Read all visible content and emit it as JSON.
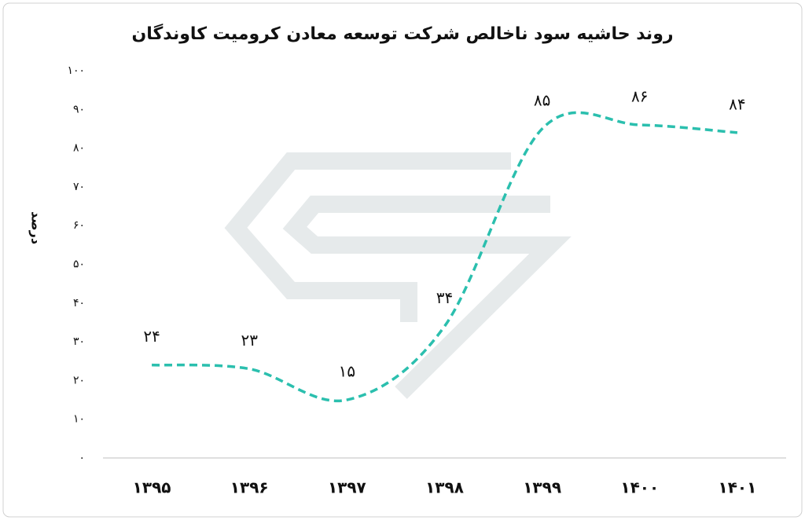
{
  "chart_data": {
    "type": "line",
    "title": "روند حاشیه سود ناخالص شرکت توسعه معادن کرومیت کاوندگان",
    "y_label": "درصد",
    "categories": [
      "۱۳۹۵",
      "۱۳۹۶",
      "۱۳۹۷",
      "۱۳۹۸",
      "۱۳۹۹",
      "۱۴۰۰",
      "۱۴۰۱"
    ],
    "series": [
      {
        "name": "حاشیه سود ناخالص",
        "color": "#2bbfae",
        "values": [
          24,
          23,
          15,
          34,
          85,
          86,
          84
        ],
        "value_labels": [
          "۲۴",
          "۲۳",
          "۱۵",
          "۳۴",
          "۸۵",
          "۸۶",
          "۸۴"
        ]
      }
    ],
    "ylim": [
      0,
      100
    ],
    "yticks": [
      {
        "value": 0,
        "label": "۰"
      },
      {
        "value": 10,
        "label": "۱۰"
      },
      {
        "value": 20,
        "label": "۲۰"
      },
      {
        "value": 30,
        "label": "۳۰"
      },
      {
        "value": 40,
        "label": "۴۰"
      },
      {
        "value": 50,
        "label": "۵۰"
      },
      {
        "value": 60,
        "label": "۶۰"
      },
      {
        "value": 70,
        "label": "۷۰"
      },
      {
        "value": 80,
        "label": "۸۰"
      },
      {
        "value": 90,
        "label": "۹۰"
      },
      {
        "value": 100,
        "label": "۱۰۰"
      }
    ],
    "grid": false
  }
}
